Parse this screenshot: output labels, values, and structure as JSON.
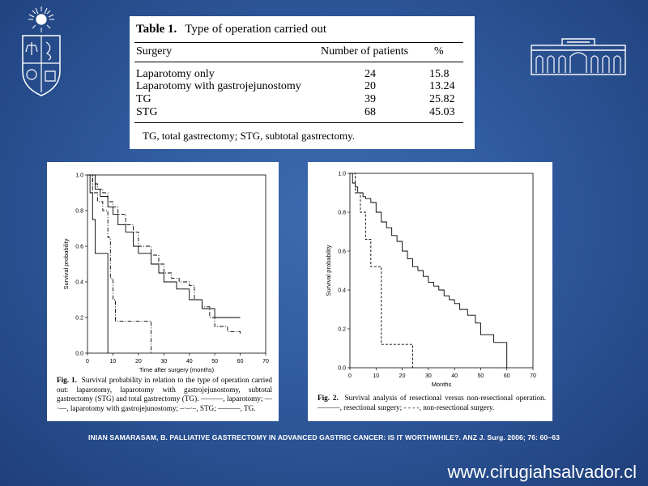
{
  "logos": {
    "left": "university-crest",
    "right": "building-facade-logo"
  },
  "table": {
    "number": "Table 1.",
    "title": "Type of operation carried out",
    "headers": [
      "Surgery",
      "Number of patients",
      "%"
    ],
    "rows": [
      [
        "Laparotomy only",
        "24",
        "15.8"
      ],
      [
        "Laparotomy with gastrojejunostomy",
        "20",
        "13.24"
      ],
      [
        "TG",
        "39",
        "25.82"
      ],
      [
        "STG",
        "68",
        "45.03"
      ]
    ],
    "footnote": "TG, total gastrectomy; STG, subtotal gastrectomy."
  },
  "figure1": {
    "caption_label": "Fig. 1.",
    "caption_text": "Survival probability in relation to the type of operation carried out: laparotomy, laparotomy with gastrojejunostomy, subtotal gastrectomy (STG) and total gastrectomy (TG). ———, laparotomy; —·—, laparotomy with gastrojejunostomy; –·–·–, STG; ———, TG."
  },
  "figure2": {
    "caption_label": "Fig. 2.",
    "caption_text": "Survival analysis of resectional versus non-resectional operation. ———, resectional surgery; - - - -, non-resectional surgery."
  },
  "chart_data": [
    {
      "type": "line",
      "xlabel": "Time after surgery (months)",
      "ylabel": "Survival probability",
      "xlim": [
        0,
        70
      ],
      "ylim": [
        0,
        1.0
      ],
      "xticks": [
        "0",
        "10",
        "20",
        "30",
        "40",
        "50",
        "60",
        "70"
      ],
      "yticks": [
        "0.0",
        "0.2",
        "0.4",
        "0.6",
        "0.8",
        "1.0"
      ],
      "series": [
        {
          "style": "solid-laparotomy",
          "x": [
            0,
            1,
            2,
            3,
            4,
            5,
            6,
            7,
            8,
            8
          ],
          "y": [
            1.0,
            0.9,
            0.75,
            0.56,
            0.56,
            0.56,
            0.56,
            0.56,
            0.56,
            0.0
          ]
        },
        {
          "style": "dashdot-gastrojejunostomy",
          "x": [
            0,
            2,
            4,
            6,
            8,
            9,
            10,
            11,
            24,
            25
          ],
          "y": [
            1.0,
            0.9,
            0.85,
            0.8,
            0.65,
            0.42,
            0.3,
            0.18,
            0.18,
            0.0
          ]
        },
        {
          "style": "dashdot-STG",
          "x": [
            0,
            2,
            4,
            6,
            8,
            10,
            12,
            15,
            18,
            20,
            25,
            28,
            30,
            33,
            36,
            40,
            42,
            45,
            48,
            50,
            55,
            60
          ],
          "y": [
            1.0,
            0.95,
            0.92,
            0.9,
            0.85,
            0.82,
            0.78,
            0.72,
            0.68,
            0.6,
            0.55,
            0.5,
            0.45,
            0.42,
            0.4,
            0.38,
            0.3,
            0.26,
            0.2,
            0.15,
            0.12,
            0.11
          ]
        },
        {
          "style": "solid-TG",
          "x": [
            0,
            3,
            5,
            8,
            10,
            12,
            15,
            18,
            20,
            25,
            28,
            30,
            35,
            40,
            45,
            50,
            55,
            60
          ],
          "y": [
            1.0,
            0.92,
            0.88,
            0.82,
            0.78,
            0.72,
            0.68,
            0.6,
            0.56,
            0.5,
            0.45,
            0.4,
            0.36,
            0.3,
            0.25,
            0.2,
            0.2,
            0.2
          ]
        }
      ]
    },
    {
      "type": "line",
      "xlabel": "Months",
      "ylabel": "Survival probability",
      "xlim": [
        0,
        70
      ],
      "ylim": [
        0,
        1.0
      ],
      "xticks": [
        "0",
        "10",
        "20",
        "30",
        "40",
        "50",
        "60",
        "70"
      ],
      "yticks": [
        "0.0",
        "0.2",
        "0.4",
        "0.6",
        "0.8",
        "1.0"
      ],
      "series": [
        {
          "style": "solid-resectional",
          "x": [
            0,
            1,
            2,
            3,
            4,
            5,
            6,
            7,
            8,
            10,
            12,
            14,
            16,
            18,
            20,
            22,
            24,
            26,
            28,
            30,
            32,
            34,
            36,
            38,
            40,
            42,
            45,
            48,
            50,
            55,
            60
          ],
          "y": [
            1.0,
            0.95,
            0.93,
            0.9,
            0.9,
            0.88,
            0.87,
            0.87,
            0.85,
            0.8,
            0.75,
            0.72,
            0.68,
            0.65,
            0.6,
            0.56,
            0.52,
            0.5,
            0.47,
            0.44,
            0.42,
            0.4,
            0.37,
            0.35,
            0.33,
            0.3,
            0.27,
            0.23,
            0.17,
            0.13,
            0.0
          ]
        },
        {
          "style": "dashed-nonresectional",
          "x": [
            0,
            2,
            4,
            6,
            8,
            10,
            12,
            14,
            24,
            24
          ],
          "y": [
            1.0,
            0.9,
            0.8,
            0.66,
            0.52,
            0.52,
            0.12,
            0.12,
            0.12,
            0.0
          ]
        }
      ]
    }
  ],
  "citation": "INIAN SAMARASAM, B. PALLIATIVE GASTRECTOMY IN ADVANCED GASTRIC CANCER: IS IT WORTHWHILE?. ANZ J. Surg. 2006;  76: 60–63",
  "website": "www.cirugiahsalvador.cl",
  "colors": {
    "background": "#2f5a9e",
    "text_white": "#ffffff"
  }
}
